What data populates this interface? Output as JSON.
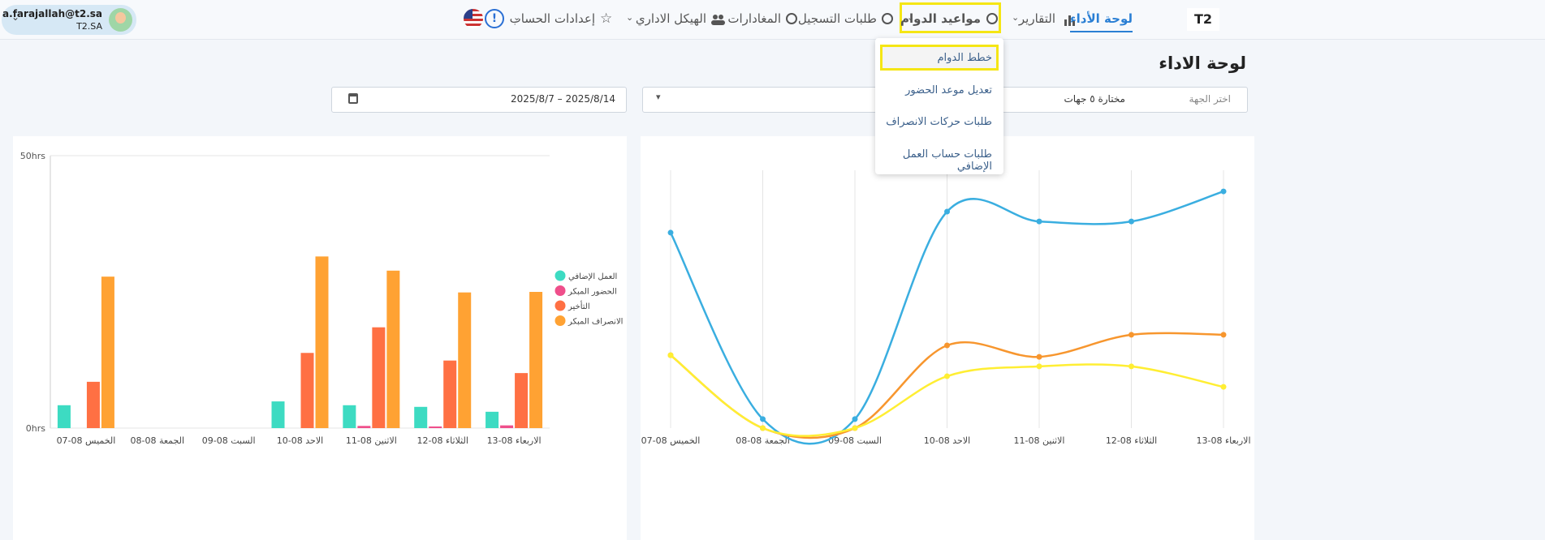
{
  "header": {
    "brand": "T2",
    "nav": [
      "لوحة الأداء",
      "التقارير",
      "مواعيد الدوام",
      "طلبات التسجيل",
      "المغادارات",
      "الهيكل الاداري",
      "إعدادات الحساب"
    ],
    "user": {
      "email": "a.farajallah@t2.sa",
      "org": "T2.SA"
    }
  },
  "dropdown": {
    "items": [
      "خطط الدوام",
      "تعديل موعد الحضور",
      "طلبات حركات الانصراف",
      "طلبات حساب العمل الإضافي"
    ]
  },
  "page": {
    "title": "لوحة الاداء"
  },
  "filters": {
    "entity_label": "اختر الجهة",
    "entity_value": "مختارة ٥ جهات",
    "date_range": "2025/8/7 – 2025/8/14"
  },
  "chart_data": [
    {
      "type": "bar",
      "categories": [
        "الخميس 08-07",
        "الجمعة 08-08",
        "السبت 08-09",
        "الاحد 08-10",
        "الاثنين 08-11",
        "الثلاثاء 08-12",
        "الاربعاء 08-13"
      ],
      "series": [
        {
          "name": "العمل الإضافي",
          "color": "#3ddbc2",
          "values": [
            4.2,
            0,
            0,
            4.9,
            4.2,
            3.9,
            3.0
          ]
        },
        {
          "name": "الحضور المبكر",
          "color": "#ef4f8b",
          "values": [
            0,
            0,
            0,
            0,
            0.4,
            0.3,
            0.5
          ]
        },
        {
          "name": "التأخير",
          "color": "#ff7043",
          "values": [
            8.5,
            0,
            0,
            13.8,
            18.5,
            12.4,
            10.1
          ]
        },
        {
          "name": "الانصراف المبكر",
          "color": "#ffa233",
          "values": [
            27.8,
            0,
            0,
            31.5,
            28.9,
            24.9,
            25.0
          ]
        }
      ],
      "ylim": [
        0,
        50
      ],
      "yticks": [
        {
          "value": 0,
          "label": "0hrs"
        },
        {
          "value": 50,
          "label": "50hrs"
        }
      ],
      "grid": true,
      "legend": "right"
    },
    {
      "type": "line",
      "categories": [
        "الخميس 08-07",
        "الجمعة 08-08",
        "السبت 08-09",
        "الاحد 08-10",
        "الاثنين 08-11",
        "الثلاثاء 08-12",
        "الاربعاء 08-13"
      ],
      "series": [
        {
          "color": "#3aaee0",
          "values": [
            73.5,
            3.4,
            3.4,
            81.4,
            77.7,
            77.7,
            89.0
          ]
        },
        {
          "color": "#f7962e",
          "values": [
            27.4,
            0,
            0,
            31.1,
            26.8,
            35.1,
            35.1
          ]
        },
        {
          "color": "#ffee33",
          "values": [
            27.4,
            0,
            0,
            19.5,
            23.2,
            23.2,
            15.5
          ]
        }
      ],
      "ylim": [
        0,
        100
      ],
      "grid": true
    }
  ]
}
